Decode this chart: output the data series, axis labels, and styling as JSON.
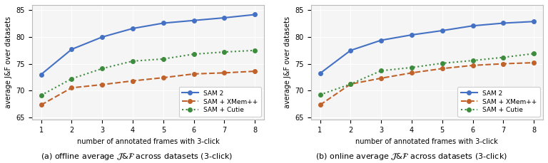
{
  "x": [
    1,
    2,
    3,
    4,
    5,
    6,
    7,
    8
  ],
  "offline": {
    "sam2": [
      73.0,
      77.7,
      80.0,
      81.6,
      82.6,
      83.1,
      83.6,
      84.2
    ],
    "xmem": [
      67.3,
      70.5,
      71.1,
      71.8,
      72.4,
      73.1,
      73.3,
      73.6
    ],
    "cutie": [
      69.1,
      72.2,
      74.1,
      75.5,
      75.9,
      76.8,
      77.2,
      77.5
    ]
  },
  "online": {
    "sam2": [
      73.2,
      77.5,
      79.4,
      80.4,
      81.2,
      82.1,
      82.6,
      82.9
    ],
    "xmem": [
      67.3,
      71.2,
      72.3,
      73.3,
      74.1,
      74.7,
      75.0,
      75.2
    ],
    "cutie": [
      69.2,
      71.2,
      73.7,
      74.3,
      75.1,
      75.6,
      76.2,
      76.9
    ]
  },
  "colors": {
    "sam2": "#4471c4",
    "xmem": "#c0622a",
    "cutie": "#3d8c3d"
  },
  "ylim": [
    64.5,
    86
  ],
  "yticks": [
    65,
    70,
    75,
    80,
    85
  ],
  "xlabel": "number of annotated frames with 3-click",
  "ylabel": "average J&F over datasets",
  "legend_labels": [
    "SAM 2",
    "SAM + XMem++",
    "SAM + Cutie"
  ],
  "caption_a": "(a) offline average $\\mathcal{J}$&$\\mathcal{F}$ across datasets (3-click)",
  "caption_b": "(b) online average $\\mathcal{J}$&$\\mathcal{F}$ across datasets (3-click)",
  "bg_color": "#f5f5f5"
}
